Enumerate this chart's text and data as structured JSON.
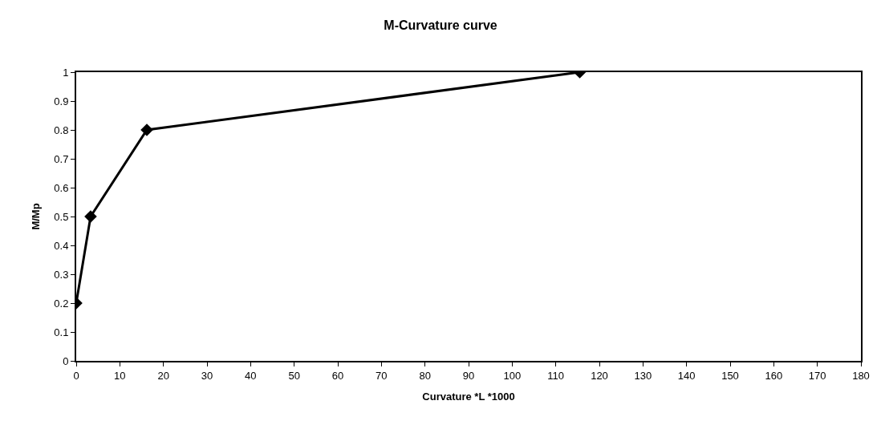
{
  "chart_data": {
    "type": "line",
    "title": "M-Curvature curve",
    "xlabel": "Curvature *L *1000",
    "ylabel": "M/Mp",
    "x": [
      0,
      3.3,
      16.2,
      115.5
    ],
    "series": [
      {
        "color": "#000000",
        "values": [
          0.2,
          0.5,
          0.8,
          1.0
        ]
      }
    ],
    "xlim": [
      0,
      180
    ],
    "xticks": [
      0,
      10,
      20,
      30,
      40,
      50,
      60,
      70,
      80,
      90,
      100,
      110,
      120,
      130,
      140,
      150,
      160,
      170,
      180
    ],
    "ylim": [
      0,
      1
    ],
    "yticks": [
      0,
      0.1,
      0.2,
      0.3,
      0.4,
      0.5,
      0.6,
      0.7,
      0.8,
      0.9,
      1
    ],
    "marker": "diamond",
    "line_style": "solid"
  }
}
